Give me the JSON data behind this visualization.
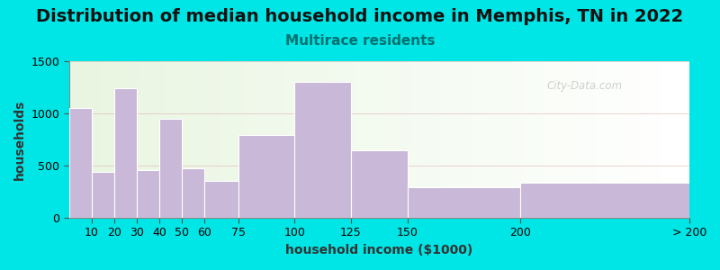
{
  "title": "Distribution of median household income in Memphis, TN in 2022",
  "subtitle": "Multirace residents",
  "xlabel": "household income ($1000)",
  "ylabel": "households",
  "bar_labels": [
    "10",
    "20",
    "30",
    "40",
    "50",
    "60",
    "75",
    "100",
    "125",
    "150",
    "200",
    "> 200"
  ],
  "bar_left_edges": [
    0,
    10,
    20,
    30,
    40,
    50,
    60,
    75,
    100,
    125,
    150,
    200
  ],
  "bar_widths": [
    10,
    10,
    10,
    10,
    10,
    10,
    15,
    25,
    25,
    25,
    50,
    75
  ],
  "bar_values": [
    1050,
    440,
    1240,
    460,
    950,
    470,
    350,
    790,
    1300,
    650,
    290,
    340
  ],
  "bar_color": "#c9b8d8",
  "bar_edge_color": "#ffffff",
  "ylim": [
    0,
    1500
  ],
  "yticks": [
    0,
    500,
    1000,
    1500
  ],
  "xlim_left": 0,
  "xlim_right": 275,
  "tick_positions": [
    10,
    20,
    30,
    40,
    50,
    60,
    75,
    100,
    125,
    150,
    200,
    275
  ],
  "background_color": "#00e5e5",
  "plot_bg_color_left": "#e8f5e0",
  "plot_bg_color_right": "#ffffff",
  "title_fontsize": 14,
  "subtitle_fontsize": 11,
  "subtitle_color": "#007070",
  "axis_label_fontsize": 10,
  "tick_fontsize": 9,
  "watermark": "City-Data.com",
  "grid_color": "#ddaaaa",
  "grid_alpha": 0.6
}
